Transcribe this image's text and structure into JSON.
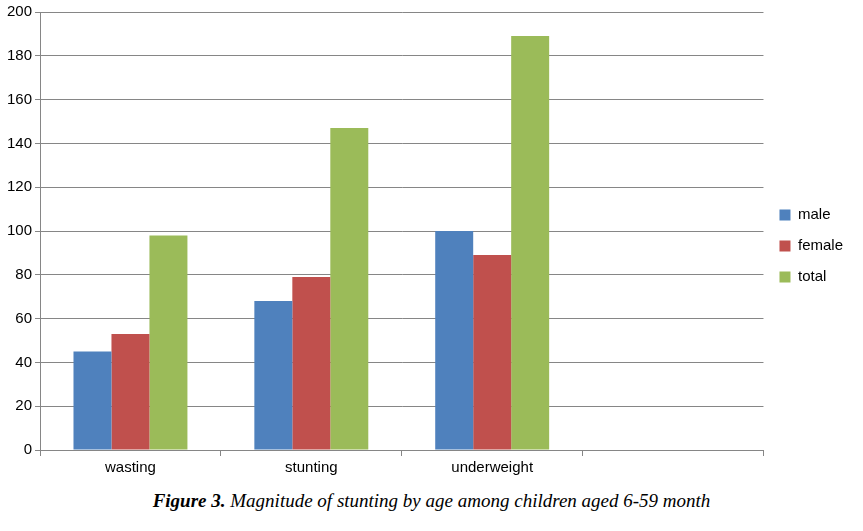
{
  "chart_data": {
    "type": "bar",
    "title": "Figure 3. Magnitude of stunting by age among children aged 6-59 month",
    "categories": [
      "wasting",
      "stunting",
      "underweight",
      null
    ],
    "series": [
      {
        "name": "male",
        "color": "#4f81bd",
        "values": [
          45,
          68,
          100,
          null
        ]
      },
      {
        "name": "female",
        "color": "#c0504d",
        "values": [
          53,
          79,
          89,
          null
        ]
      },
      {
        "name": "total",
        "color": "#9bbb59",
        "values": [
          98,
          147,
          189,
          null
        ]
      }
    ],
    "ylim": [
      0,
      200
    ],
    "yticks": [
      0,
      20,
      40,
      60,
      80,
      100,
      120,
      140,
      160,
      180,
      200
    ],
    "grid": true,
    "legend": "right"
  }
}
